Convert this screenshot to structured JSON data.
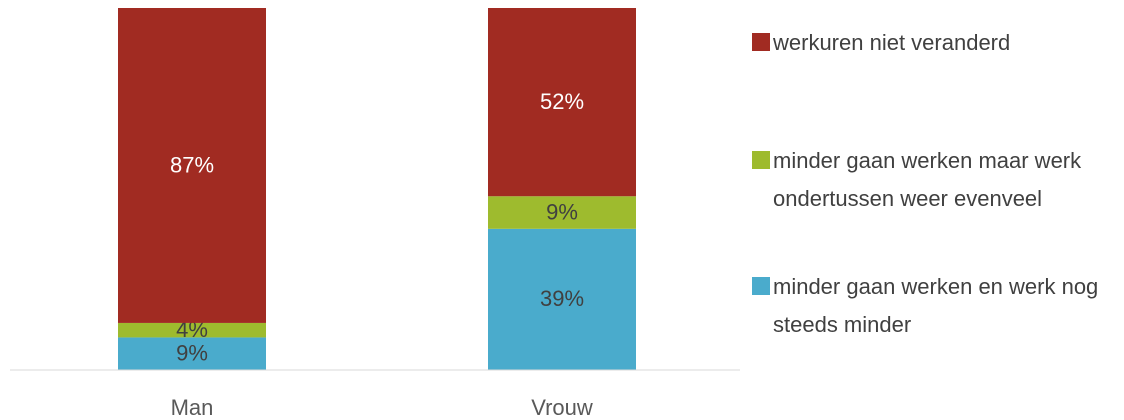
{
  "chart_data": {
    "type": "stacked_bar",
    "categories": [
      "Man",
      "Vrouw"
    ],
    "series": [
      {
        "name": "minder gaan werken en werk nog steeds minder",
        "color": "#4aabcc",
        "label_color": "#404040",
        "values": [
          9,
          39
        ],
        "value_labels": [
          "9%",
          "39%"
        ]
      },
      {
        "name": "minder gaan werken maar werk ondertussen weer evenveel",
        "color": "#9ebb2e",
        "label_color": "#404040",
        "values": [
          4,
          9
        ],
        "value_labels": [
          "4%",
          "9%"
        ]
      },
      {
        "name": "werkuren niet veranderd",
        "color": "#a12b22",
        "label_color": "#ffffff",
        "values": [
          87,
          52
        ],
        "value_labels": [
          "87%",
          "52%"
        ]
      }
    ],
    "ylim": [
      0,
      100
    ],
    "legend": "right"
  }
}
